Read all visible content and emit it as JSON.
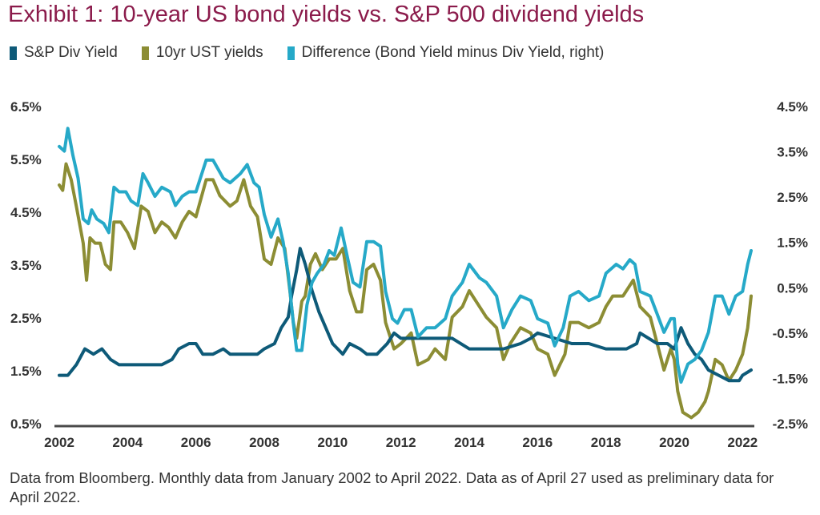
{
  "title": "Exhibit 1: 10-year US bond yields vs. S&P 500 dividend yields",
  "footnote": "Data from Bloomberg. Monthly data from January 2002 to April 2022. Data as of April 27 used as preliminary data for April 2022.",
  "colors": {
    "title": "#8b1b4b",
    "div_yield": "#0e5a78",
    "ust": "#8c8d34",
    "difference": "#26a9c8",
    "axis": "#333333"
  },
  "legend": [
    {
      "label": "S&P Div Yield",
      "color": "#0e5a78"
    },
    {
      "label": "10yr UST yields",
      "color": "#8c8d34"
    },
    {
      "label": "Difference (Bond Yield minus Div Yield, right)",
      "color": "#26a9c8"
    }
  ],
  "chart_data": {
    "type": "line",
    "x_ticks": [
      "2002",
      "2004",
      "2006",
      "2008",
      "2010",
      "2012",
      "2014",
      "2016",
      "2018",
      "2020",
      "2022"
    ],
    "x_range": [
      2002.0,
      2022.25
    ],
    "y_left": {
      "ticks": [
        "6.5%",
        "5.5%",
        "4.5%",
        "3.5%",
        "2.5%",
        "1.5%",
        "0.5%"
      ],
      "range": [
        0.5,
        6.5
      ]
    },
    "y_right": {
      "ticks": [
        "4.5%",
        "3.5%",
        "2.5%",
        "1.5%",
        "0.5%",
        "-0.5%",
        "-1.5%",
        "-2.5%"
      ],
      "range": [
        -2.5,
        4.5
      ]
    },
    "grid": false,
    "legend_position": "top-left",
    "series": [
      {
        "name": "S&P Div Yield",
        "axis": "left",
        "points": [
          [
            2002.0,
            1.4
          ],
          [
            2002.25,
            1.4
          ],
          [
            2002.5,
            1.6
          ],
          [
            2002.75,
            1.9
          ],
          [
            2003.0,
            1.8
          ],
          [
            2003.25,
            1.9
          ],
          [
            2003.5,
            1.7
          ],
          [
            2003.75,
            1.6
          ],
          [
            2004.0,
            1.6
          ],
          [
            2004.5,
            1.6
          ],
          [
            2005.0,
            1.6
          ],
          [
            2005.3,
            1.7
          ],
          [
            2005.5,
            1.9
          ],
          [
            2005.8,
            2.0
          ],
          [
            2006.0,
            2.0
          ],
          [
            2006.2,
            1.8
          ],
          [
            2006.5,
            1.8
          ],
          [
            2006.8,
            1.9
          ],
          [
            2007.0,
            1.8
          ],
          [
            2007.5,
            1.8
          ],
          [
            2007.8,
            1.8
          ],
          [
            2008.0,
            1.9
          ],
          [
            2008.3,
            2.0
          ],
          [
            2008.5,
            2.3
          ],
          [
            2008.7,
            2.5
          ],
          [
            2008.8,
            2.9
          ],
          [
            2008.95,
            3.4
          ],
          [
            2009.05,
            3.8
          ],
          [
            2009.2,
            3.5
          ],
          [
            2009.4,
            3.0
          ],
          [
            2009.6,
            2.6
          ],
          [
            2009.8,
            2.3
          ],
          [
            2010.0,
            2.0
          ],
          [
            2010.3,
            1.8
          ],
          [
            2010.5,
            2.0
          ],
          [
            2010.8,
            1.9
          ],
          [
            2011.0,
            1.8
          ],
          [
            2011.3,
            1.8
          ],
          [
            2011.6,
            2.0
          ],
          [
            2011.8,
            2.2
          ],
          [
            2012.0,
            2.1
          ],
          [
            2012.5,
            2.1
          ],
          [
            2013.0,
            2.1
          ],
          [
            2013.5,
            2.1
          ],
          [
            2014.0,
            1.9
          ],
          [
            2014.5,
            1.9
          ],
          [
            2015.0,
            1.9
          ],
          [
            2015.5,
            2.0
          ],
          [
            2015.8,
            2.1
          ],
          [
            2016.0,
            2.2
          ],
          [
            2016.5,
            2.1
          ],
          [
            2017.0,
            2.0
          ],
          [
            2017.5,
            2.0
          ],
          [
            2018.0,
            1.9
          ],
          [
            2018.3,
            1.9
          ],
          [
            2018.6,
            1.9
          ],
          [
            2018.9,
            2.0
          ],
          [
            2019.0,
            2.2
          ],
          [
            2019.5,
            2.0
          ],
          [
            2019.8,
            2.0
          ],
          [
            2020.0,
            1.9
          ],
          [
            2020.2,
            2.3
          ],
          [
            2020.4,
            2.0
          ],
          [
            2020.6,
            1.8
          ],
          [
            2020.8,
            1.7
          ],
          [
            2021.0,
            1.5
          ],
          [
            2021.3,
            1.4
          ],
          [
            2021.6,
            1.3
          ],
          [
            2021.9,
            1.3
          ],
          [
            2022.0,
            1.4
          ],
          [
            2022.25,
            1.5
          ]
        ]
      },
      {
        "name": "10yr UST yields",
        "axis": "left",
        "points": [
          [
            2002.0,
            5.0
          ],
          [
            2002.1,
            4.9
          ],
          [
            2002.2,
            5.4
          ],
          [
            2002.35,
            5.1
          ],
          [
            2002.5,
            4.6
          ],
          [
            2002.7,
            3.9
          ],
          [
            2002.8,
            3.2
          ],
          [
            2002.9,
            4.0
          ],
          [
            2003.05,
            3.9
          ],
          [
            2003.2,
            3.9
          ],
          [
            2003.35,
            3.5
          ],
          [
            2003.5,
            3.4
          ],
          [
            2003.6,
            4.3
          ],
          [
            2003.8,
            4.3
          ],
          [
            2004.0,
            4.1
          ],
          [
            2004.2,
            3.8
          ],
          [
            2004.4,
            4.6
          ],
          [
            2004.6,
            4.5
          ],
          [
            2004.8,
            4.1
          ],
          [
            2005.0,
            4.3
          ],
          [
            2005.2,
            4.2
          ],
          [
            2005.4,
            4.0
          ],
          [
            2005.6,
            4.3
          ],
          [
            2005.8,
            4.5
          ],
          [
            2006.0,
            4.4
          ],
          [
            2006.3,
            5.1
          ],
          [
            2006.5,
            5.1
          ],
          [
            2006.7,
            4.8
          ],
          [
            2007.0,
            4.6
          ],
          [
            2007.2,
            4.7
          ],
          [
            2007.4,
            5.1
          ],
          [
            2007.6,
            4.6
          ],
          [
            2007.8,
            4.4
          ],
          [
            2008.0,
            3.6
          ],
          [
            2008.2,
            3.5
          ],
          [
            2008.4,
            4.0
          ],
          [
            2008.6,
            3.8
          ],
          [
            2008.75,
            3.0
          ],
          [
            2008.85,
            2.4
          ],
          [
            2008.95,
            2.1
          ],
          [
            2009.1,
            2.8
          ],
          [
            2009.2,
            2.9
          ],
          [
            2009.35,
            3.5
          ],
          [
            2009.5,
            3.7
          ],
          [
            2009.7,
            3.4
          ],
          [
            2009.9,
            3.6
          ],
          [
            2010.1,
            3.6
          ],
          [
            2010.3,
            3.8
          ],
          [
            2010.5,
            3.0
          ],
          [
            2010.7,
            2.6
          ],
          [
            2010.85,
            2.6
          ],
          [
            2011.0,
            3.4
          ],
          [
            2011.2,
            3.5
          ],
          [
            2011.4,
            3.2
          ],
          [
            2011.55,
            2.4
          ],
          [
            2011.8,
            1.9
          ],
          [
            2012.0,
            2.0
          ],
          [
            2012.3,
            2.2
          ],
          [
            2012.5,
            1.6
          ],
          [
            2012.8,
            1.7
          ],
          [
            2013.0,
            1.9
          ],
          [
            2013.3,
            1.7
          ],
          [
            2013.5,
            2.5
          ],
          [
            2013.8,
            2.7
          ],
          [
            2014.0,
            3.0
          ],
          [
            2014.3,
            2.7
          ],
          [
            2014.5,
            2.5
          ],
          [
            2014.8,
            2.3
          ],
          [
            2015.0,
            1.7
          ],
          [
            2015.2,
            2.0
          ],
          [
            2015.5,
            2.3
          ],
          [
            2015.8,
            2.2
          ],
          [
            2016.0,
            1.9
          ],
          [
            2016.3,
            1.8
          ],
          [
            2016.5,
            1.4
          ],
          [
            2016.8,
            1.8
          ],
          [
            2016.95,
            2.4
          ],
          [
            2017.2,
            2.4
          ],
          [
            2017.5,
            2.3
          ],
          [
            2017.8,
            2.4
          ],
          [
            2018.0,
            2.7
          ],
          [
            2018.2,
            2.9
          ],
          [
            2018.5,
            2.9
          ],
          [
            2018.8,
            3.2
          ],
          [
            2019.0,
            2.7
          ],
          [
            2019.3,
            2.5
          ],
          [
            2019.5,
            2.0
          ],
          [
            2019.7,
            1.5
          ],
          [
            2019.9,
            1.9
          ],
          [
            2020.0,
            1.7
          ],
          [
            2020.1,
            1.1
          ],
          [
            2020.25,
            0.7
          ],
          [
            2020.5,
            0.6
          ],
          [
            2020.7,
            0.7
          ],
          [
            2020.9,
            0.9
          ],
          [
            2021.0,
            1.1
          ],
          [
            2021.2,
            1.7
          ],
          [
            2021.4,
            1.6
          ],
          [
            2021.6,
            1.3
          ],
          [
            2021.8,
            1.5
          ],
          [
            2022.0,
            1.8
          ],
          [
            2022.15,
            2.3
          ],
          [
            2022.25,
            2.9
          ]
        ]
      },
      {
        "name": "Difference (Bond Yield minus Div Yield, right)",
        "axis": "right",
        "points": [
          [
            2002.0,
            3.6
          ],
          [
            2002.15,
            3.5
          ],
          [
            2002.25,
            4.0
          ],
          [
            2002.4,
            3.4
          ],
          [
            2002.55,
            2.9
          ],
          [
            2002.7,
            2.0
          ],
          [
            2002.85,
            1.9
          ],
          [
            2002.95,
            2.2
          ],
          [
            2003.1,
            2.0
          ],
          [
            2003.3,
            1.9
          ],
          [
            2003.45,
            1.7
          ],
          [
            2003.6,
            2.7
          ],
          [
            2003.75,
            2.6
          ],
          [
            2003.95,
            2.6
          ],
          [
            2004.1,
            2.4
          ],
          [
            2004.3,
            2.3
          ],
          [
            2004.45,
            3.0
          ],
          [
            2004.6,
            2.8
          ],
          [
            2004.8,
            2.5
          ],
          [
            2005.0,
            2.7
          ],
          [
            2005.25,
            2.6
          ],
          [
            2005.4,
            2.3
          ],
          [
            2005.6,
            2.5
          ],
          [
            2005.8,
            2.6
          ],
          [
            2006.0,
            2.6
          ],
          [
            2006.3,
            3.3
          ],
          [
            2006.5,
            3.3
          ],
          [
            2006.8,
            2.9
          ],
          [
            2007.0,
            2.8
          ],
          [
            2007.3,
            3.0
          ],
          [
            2007.5,
            3.2
          ],
          [
            2007.7,
            2.8
          ],
          [
            2007.85,
            2.7
          ],
          [
            2008.0,
            2.1
          ],
          [
            2008.2,
            1.6
          ],
          [
            2008.4,
            2.0
          ],
          [
            2008.55,
            1.5
          ],
          [
            2008.7,
            0.8
          ],
          [
            2008.85,
            -0.3
          ],
          [
            2008.95,
            -0.9
          ],
          [
            2009.1,
            -0.9
          ],
          [
            2009.25,
            0.1
          ],
          [
            2009.4,
            0.6
          ],
          [
            2009.55,
            0.8
          ],
          [
            2009.75,
            1.0
          ],
          [
            2009.9,
            1.3
          ],
          [
            2010.05,
            1.2
          ],
          [
            2010.25,
            1.8
          ],
          [
            2010.45,
            1.1
          ],
          [
            2010.6,
            0.6
          ],
          [
            2010.8,
            0.5
          ],
          [
            2011.0,
            1.5
          ],
          [
            2011.2,
            1.5
          ],
          [
            2011.4,
            1.4
          ],
          [
            2011.55,
            0.4
          ],
          [
            2011.75,
            -0.2
          ],
          [
            2011.9,
            -0.3
          ],
          [
            2012.1,
            0.0
          ],
          [
            2012.3,
            0.0
          ],
          [
            2012.5,
            -0.6
          ],
          [
            2012.75,
            -0.4
          ],
          [
            2013.0,
            -0.4
          ],
          [
            2013.3,
            -0.2
          ],
          [
            2013.5,
            0.3
          ],
          [
            2013.8,
            0.6
          ],
          [
            2014.0,
            1.0
          ],
          [
            2014.3,
            0.7
          ],
          [
            2014.5,
            0.6
          ],
          [
            2014.8,
            0.3
          ],
          [
            2015.0,
            -0.4
          ],
          [
            2015.25,
            0.0
          ],
          [
            2015.5,
            0.3
          ],
          [
            2015.8,
            0.2
          ],
          [
            2016.0,
            -0.2
          ],
          [
            2016.3,
            -0.3
          ],
          [
            2016.5,
            -0.8
          ],
          [
            2016.75,
            -0.4
          ],
          [
            2016.95,
            0.3
          ],
          [
            2017.2,
            0.4
          ],
          [
            2017.5,
            0.2
          ],
          [
            2017.8,
            0.3
          ],
          [
            2018.0,
            0.8
          ],
          [
            2018.3,
            1.0
          ],
          [
            2018.5,
            0.9
          ],
          [
            2018.7,
            1.1
          ],
          [
            2018.85,
            1.0
          ],
          [
            2019.0,
            0.4
          ],
          [
            2019.3,
            0.3
          ],
          [
            2019.5,
            -0.1
          ],
          [
            2019.7,
            -0.5
          ],
          [
            2019.9,
            -0.2
          ],
          [
            2020.0,
            -0.2
          ],
          [
            2020.1,
            -1.2
          ],
          [
            2020.2,
            -1.6
          ],
          [
            2020.4,
            -1.2
          ],
          [
            2020.6,
            -1.1
          ],
          [
            2020.8,
            -0.9
          ],
          [
            2021.0,
            -0.5
          ],
          [
            2021.2,
            0.3
          ],
          [
            2021.4,
            0.3
          ],
          [
            2021.6,
            -0.1
          ],
          [
            2021.8,
            0.3
          ],
          [
            2022.0,
            0.4
          ],
          [
            2022.15,
            1.0
          ],
          [
            2022.25,
            1.3
          ]
        ]
      }
    ]
  }
}
